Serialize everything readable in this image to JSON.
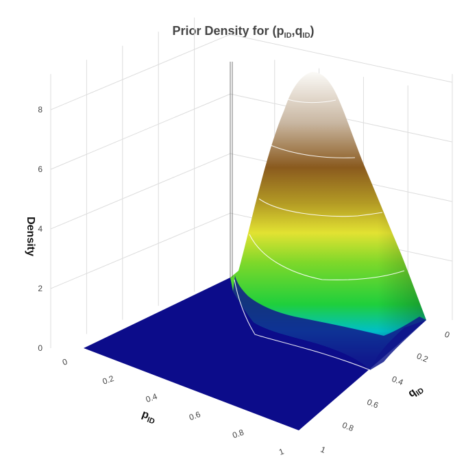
{
  "chart_data": {
    "type": "surface",
    "title_main": "Prior Density for (p",
    "title_sub1": "ID",
    "title_sep": ",q",
    "title_sub2": "ID",
    "title_end": ")",
    "x_axis": {
      "label_main": "p",
      "label_sub": "ID",
      "range": [
        0,
        1
      ],
      "ticks": [
        "0",
        "0.2",
        "0.4",
        "0.6",
        "0.8",
        "1"
      ]
    },
    "y_axis": {
      "label_main": "q",
      "label_sub": "ID",
      "range": [
        0,
        1
      ],
      "ticks": [
        "0",
        "0.2",
        "0.4",
        "0.6",
        "0.8",
        "1"
      ]
    },
    "z_axis": {
      "label": "Density",
      "range": [
        0,
        9.2
      ],
      "ticks": [
        "0",
        "2",
        "4",
        "6",
        "8"
      ]
    },
    "peak": {
      "p": 0,
      "q": 0,
      "density": 9.2
    },
    "density_rows": {
      "p_values": [
        0,
        0.2,
        0.4,
        0.6,
        0.8,
        1
      ],
      "q_values": [
        0,
        0.2,
        0.4,
        0.6,
        0.8,
        1
      ],
      "z": [
        [
          9.2,
          7.0,
          4.3,
          2.0,
          0.5,
          0.0
        ],
        [
          0.3,
          0.15,
          0.05,
          0.0,
          0.0,
          0.0
        ],
        [
          0.0,
          0.0,
          0.0,
          0.0,
          0.0,
          0.0
        ],
        [
          0.0,
          0.0,
          0.0,
          0.0,
          0.0,
          0.0
        ],
        [
          0.0,
          0.0,
          0.0,
          0.0,
          0.0,
          0.0
        ],
        [
          0.0,
          0.0,
          0.0,
          0.0,
          0.0,
          0.0
        ]
      ]
    },
    "contour_levels": [
      1,
      3,
      5,
      7
    ],
    "colorscale": [
      "#0c0c8a",
      "#00c0c8",
      "#30d030",
      "#e0e030",
      "#8b5a1c",
      "#ffffff"
    ],
    "grid": true
  }
}
